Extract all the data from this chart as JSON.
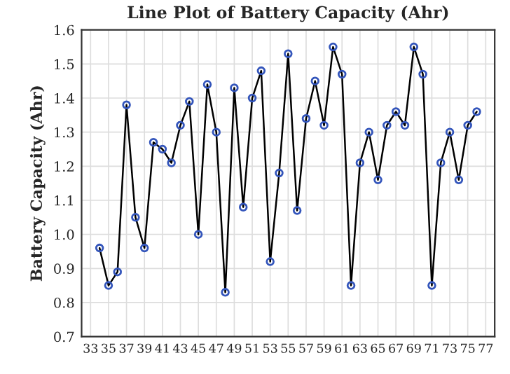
{
  "chart_data": {
    "type": "line",
    "title": "Line Plot of Battery Capacity (Ahr)",
    "ylabel": "Battery Capacity (Ahr)",
    "x": [
      34,
      35,
      36,
      37,
      38,
      39,
      40,
      41,
      42,
      43,
      44,
      45,
      46,
      47,
      48,
      49,
      50,
      51,
      52,
      53,
      54,
      55,
      56,
      57,
      58,
      59,
      60,
      61,
      62,
      63,
      64,
      65,
      66,
      67,
      68,
      69,
      70,
      71,
      72,
      73,
      74,
      75,
      76
    ],
    "series": [
      {
        "color": "#000000",
        "values": [
          0.96,
          0.85,
          0.89,
          1.38,
          1.05,
          0.96,
          1.27,
          1.25,
          1.21,
          1.32,
          1.39,
          1.0,
          1.44,
          1.3,
          0.83,
          1.43,
          1.08,
          1.4,
          1.48,
          0.92,
          1.18,
          1.53,
          1.07,
          1.34,
          1.45,
          1.32,
          1.55,
          1.47,
          0.85,
          1.21,
          1.3,
          1.16,
          1.32,
          1.36,
          1.32,
          1.55,
          1.47,
          0.85,
          1.21,
          1.3,
          1.16,
          1.32,
          1.36
        ]
      }
    ],
    "xlim": [
      32,
      78
    ],
    "xticks": [
      33,
      35,
      37,
      39,
      41,
      43,
      45,
      47,
      49,
      51,
      53,
      55,
      57,
      59,
      61,
      63,
      65,
      67,
      69,
      71,
      73,
      75,
      77
    ],
    "ylim": [
      0.7,
      1.6
    ],
    "yticks": [
      0.7,
      0.8,
      0.9,
      {
        "value": 1.0,
        "label": "1.0"
      },
      1.1,
      1.2,
      1.3,
      1.4,
      1.5,
      1.6
    ],
    "grid": true,
    "marker": "circle",
    "line_style": "solid"
  }
}
